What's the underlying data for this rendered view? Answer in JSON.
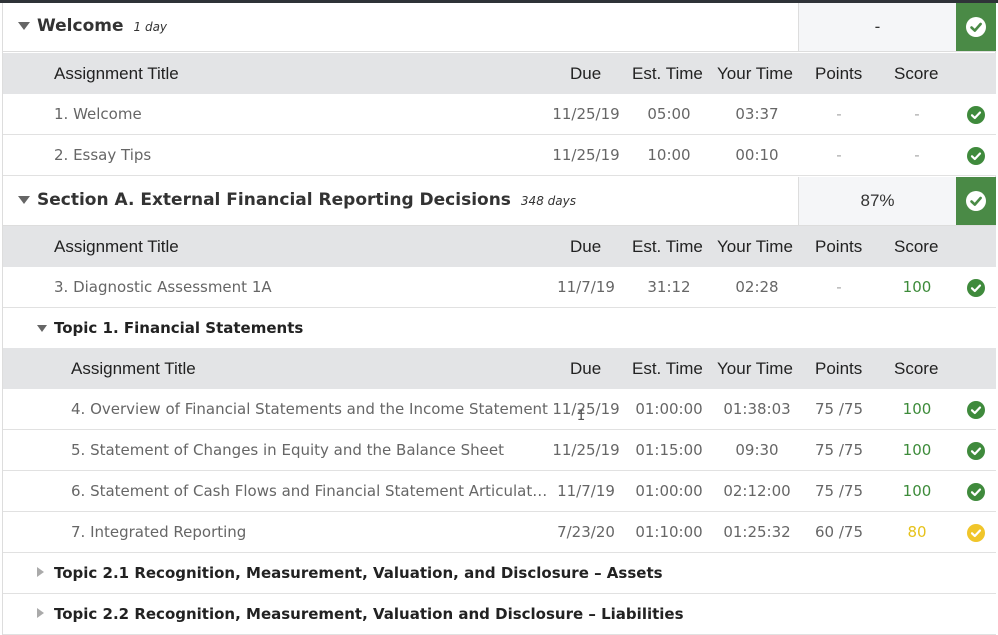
{
  "colors": {
    "complete_green": "#4a8a46",
    "score_green": "#3d8b3a",
    "score_yellow": "#e6c21b",
    "header_gray": "#e3e4e6"
  },
  "columns": {
    "title": "Assignment Title",
    "due": "Due",
    "est": "Est. Time",
    "your": "Your Time",
    "points": "Points",
    "score": "Score"
  },
  "sections": [
    {
      "title": "Welcome",
      "duration": "1 day",
      "grade": "-",
      "status_icon": "check-circle-icon",
      "rows": [
        {
          "title": "1. Welcome",
          "due": "11/25/19",
          "est": "05:00",
          "your": "03:37",
          "points": "-",
          "score": "-",
          "status": "complete"
        },
        {
          "title": "2. Essay Tips",
          "due": "11/25/19",
          "est": "10:00",
          "your": "00:10",
          "points": "-",
          "score": "-",
          "status": "complete"
        }
      ]
    },
    {
      "title": "Section A. External Financial Reporting Decisions",
      "duration": "348 days",
      "grade": "87%",
      "status_icon": "check-circle-icon",
      "rows": [
        {
          "title": "3. Diagnostic Assessment 1A",
          "due": "11/7/19",
          "est": "31:12",
          "your": "02:28",
          "points": "-",
          "score": "100",
          "status": "complete"
        }
      ],
      "topics": [
        {
          "title": "Topic 1. Financial Statements",
          "expanded": true,
          "rows": [
            {
              "title": "4. Overview of Financial Statements and the Income Statement",
              "due": "11/25/19",
              "est": "01:00:00",
              "your": "01:38:03",
              "points": "75 /75",
              "score": "100",
              "status": "complete"
            },
            {
              "title": "5. Statement of Changes in Equity and the Balance Sheet",
              "due": "11/25/19",
              "est": "01:15:00",
              "your": "09:30",
              "points": "75 /75",
              "score": "100",
              "status": "complete"
            },
            {
              "title": "6. Statement of Cash Flows and Financial Statement Articulat…",
              "due": "11/7/19",
              "est": "01:00:00",
              "your": "02:12:00",
              "points": "75 /75",
              "score": "100",
              "status": "complete"
            },
            {
              "title": "7. Integrated Reporting",
              "due": "7/23/20",
              "est": "01:10:00",
              "your": "01:25:32",
              "points": "60 /75",
              "score": "80",
              "status": "partial"
            }
          ]
        },
        {
          "title": "Topic 2.1 Recognition, Measurement, Valuation, and Disclosure – Assets",
          "expanded": false
        },
        {
          "title": "Topic 2.2 Recognition, Measurement, Valuation and Disclosure – Liabilities",
          "expanded": false
        }
      ]
    }
  ]
}
